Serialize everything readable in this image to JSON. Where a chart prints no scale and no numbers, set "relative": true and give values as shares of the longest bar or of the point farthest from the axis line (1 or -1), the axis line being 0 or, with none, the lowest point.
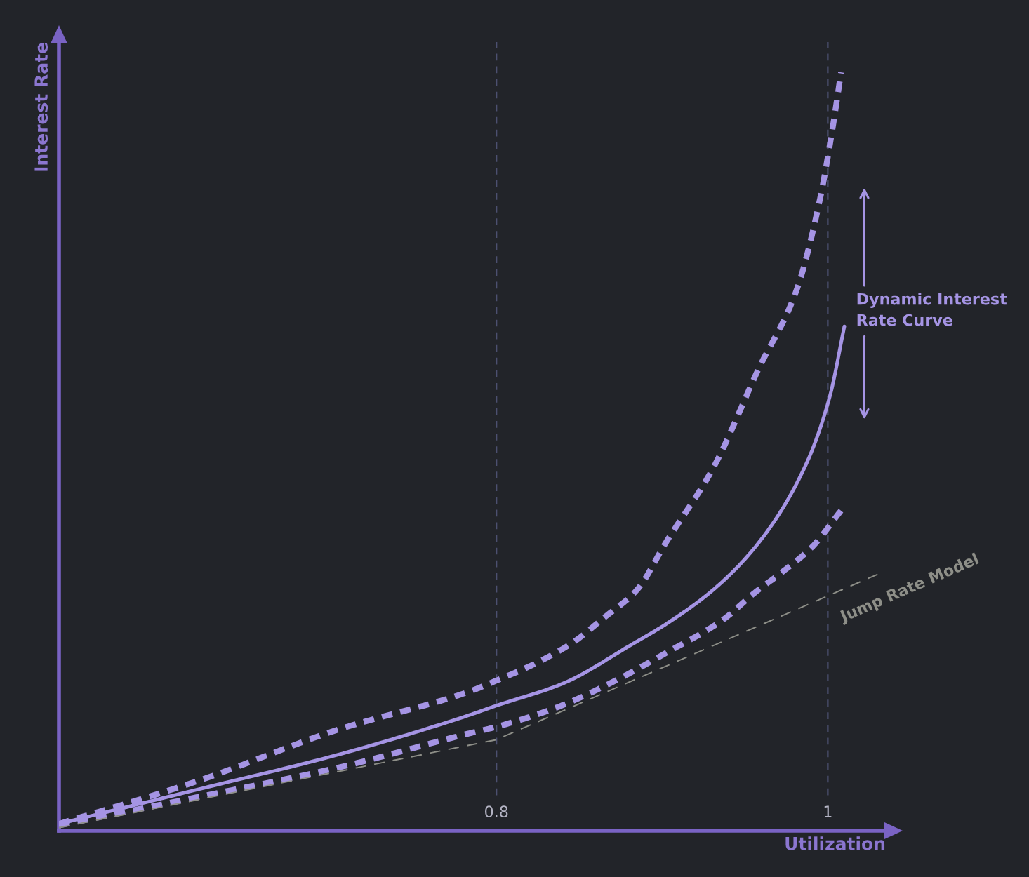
{
  "chart_data": {
    "type": "line",
    "relative": true,
    "xlabel": "Utilization",
    "ylabel": "Interest Rate",
    "xlim": [
      0.536,
      1.035
    ],
    "xticks": [
      0.8,
      1
    ],
    "tick_labels": "x",
    "series": [
      {
        "name": "Dynamic Interest Rate Curve",
        "color": "#a594e4",
        "line_style": "solid",
        "x": [
          0.536,
          0.619,
          0.704,
          0.783,
          0.8,
          0.84,
          0.882,
          0.902,
          0.931,
          0.958,
          0.986,
          1.001,
          1.01
        ],
        "values": [
          0.009,
          0.054,
          0.1,
          0.152,
          0.165,
          0.194,
          0.246,
          0.272,
          0.318,
          0.379,
          0.479,
          0.571,
          0.665
        ]
      },
      {
        "color": "#a594e4",
        "line_style": "dashed",
        "x": [
          0.536,
          0.619,
          0.704,
          0.783,
          0.8,
          0.823,
          0.846,
          0.865,
          0.885,
          0.902,
          0.931,
          0.958,
          0.981,
          0.995,
          1.003,
          1.008
        ],
        "values": [
          0.009,
          0.065,
          0.133,
          0.183,
          0.198,
          0.22,
          0.248,
          0.281,
          0.318,
          0.379,
          0.479,
          0.608,
          0.712,
          0.83,
          0.928,
          1.0
        ]
      },
      {
        "color": "#a594e4",
        "line_style": "dashed",
        "x": [
          0.536,
          0.619,
          0.704,
          0.783,
          0.8,
          0.837,
          0.871,
          0.902,
          0.936,
          0.956,
          0.973,
          0.99,
          1.009
        ],
        "values": [
          0.007,
          0.044,
          0.083,
          0.128,
          0.137,
          0.163,
          0.197,
          0.234,
          0.277,
          0.314,
          0.342,
          0.373,
          0.425
        ]
      },
      {
        "name": "Jump Rate Model",
        "color": "#8e8f88",
        "line_style": "dashed",
        "x": [
          0.536,
          0.8,
          1.032
        ],
        "values": [
          0.004,
          0.12,
          0.34
        ]
      }
    ],
    "ref_lines": [
      {
        "axis": "x",
        "value": 0.8,
        "color": "#4c5070",
        "line_style": "dashed"
      },
      {
        "axis": "x",
        "value": 1,
        "color": "#4c5070",
        "line_style": "dashed"
      }
    ]
  }
}
